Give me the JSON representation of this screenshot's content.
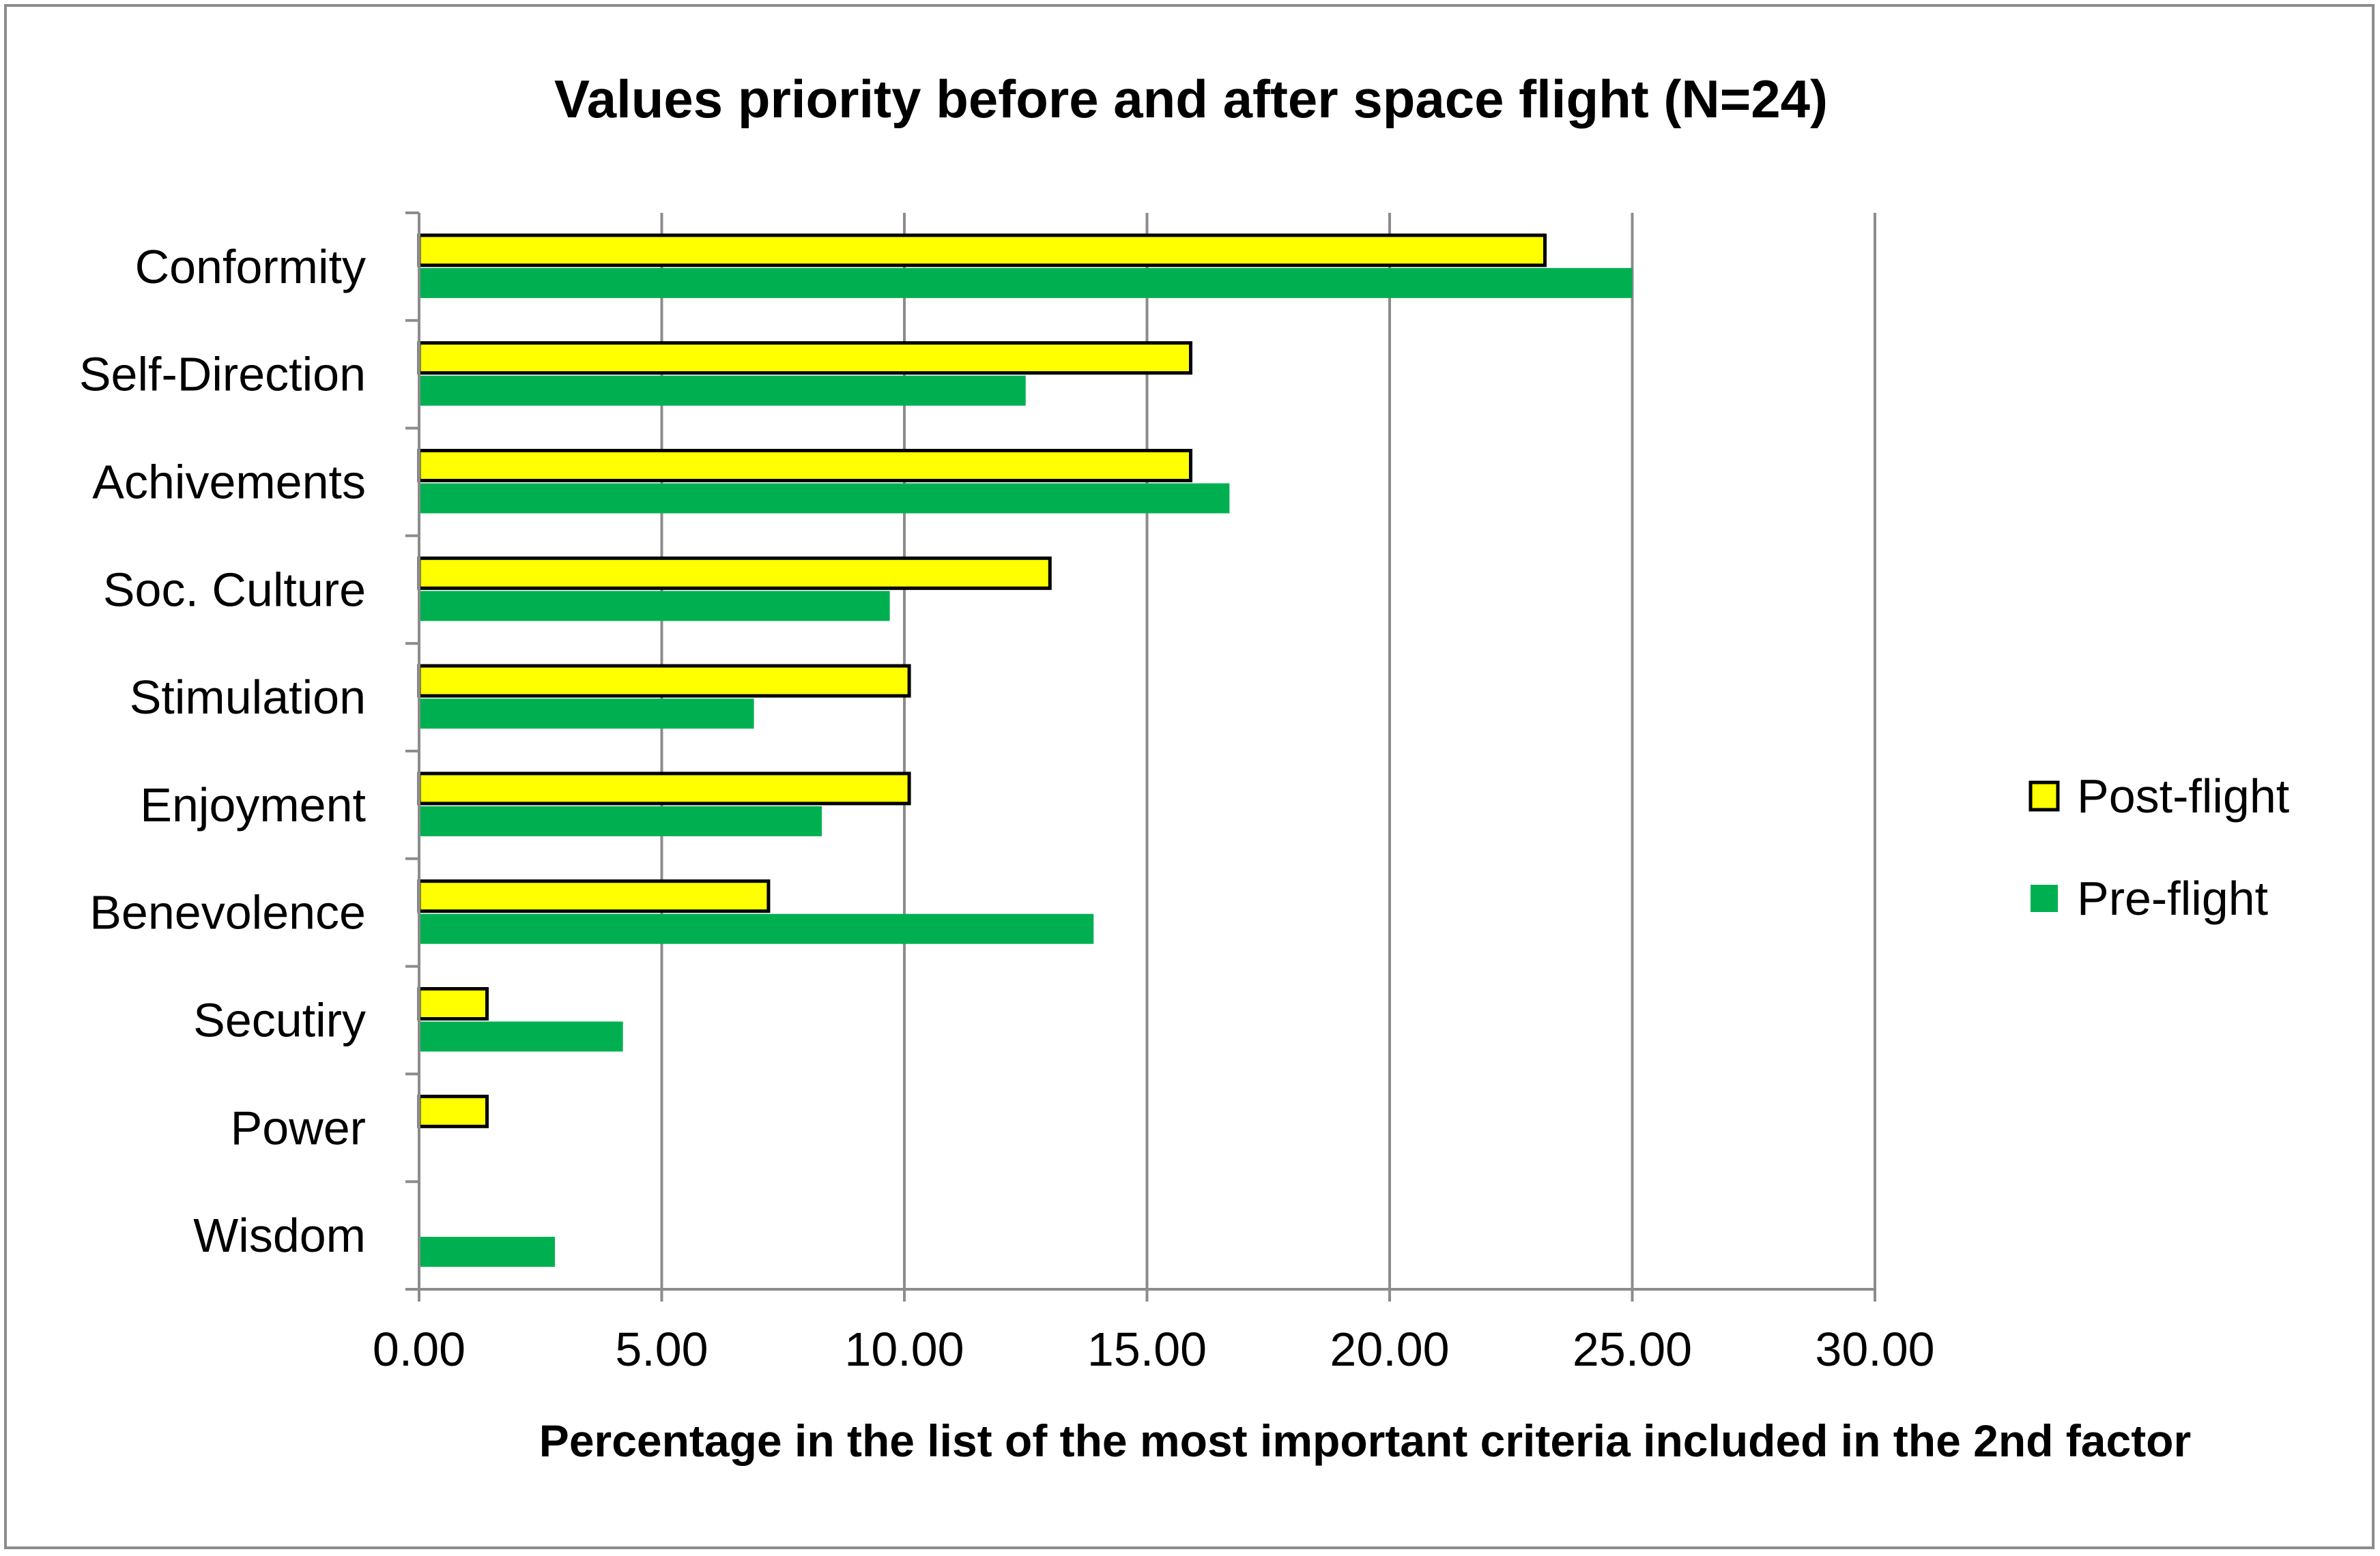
{
  "chart_data": {
    "type": "bar",
    "orientation": "horizontal",
    "title": "Values priority before and after space flight (N=24)",
    "xlabel": "Percentage in the list of the most important criteria included in the 2nd factor",
    "ylabel": "",
    "categories": [
      "Conformity",
      "Self-Direction",
      "Achivements",
      "Soc. Culture",
      "Stimulation",
      "Enjoyment",
      "Benevolence",
      "Secutiry",
      "Power",
      "Wisdom"
    ],
    "series": [
      {
        "name": "Post-flight",
        "color": "#ffff00",
        "stroke": "#000000",
        "values": [
          23.2,
          15.9,
          15.9,
          13.0,
          10.1,
          10.1,
          7.2,
          1.4,
          1.4,
          0
        ]
      },
      {
        "name": "Pre-flight",
        "color": "#00b050",
        "stroke": "none",
        "values": [
          25.0,
          12.5,
          16.7,
          9.7,
          6.9,
          8.3,
          13.9,
          4.2,
          0,
          2.8
        ]
      }
    ],
    "xlim": [
      0,
      30
    ],
    "xticks": [
      0,
      5,
      10,
      15,
      20,
      25,
      30
    ],
    "tick_labels": [
      "0.00",
      "5.00",
      "10.00",
      "15.00",
      "20.00",
      "25.00",
      "30.00"
    ],
    "grid": true,
    "grid_color": "#8c8c8c",
    "legend_position": "right"
  }
}
